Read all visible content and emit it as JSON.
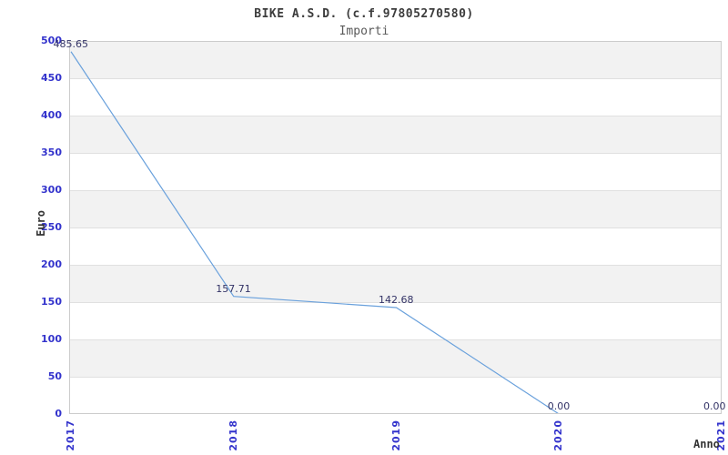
{
  "header": {
    "title": "BIKE A.S.D. (c.f.97805270580)",
    "subtitle": "Importi"
  },
  "chart_data": {
    "type": "line",
    "title": "BIKE A.S.D. (c.f.97805270580)",
    "subtitle": "Importi",
    "xlabel": "Anno",
    "ylabel": "Euro",
    "categories": [
      "2017",
      "2018",
      "2019",
      "2020",
      "2021"
    ],
    "series": [
      {
        "name": "Importi",
        "values": [
          485.65,
          157.71,
          142.68,
          0.0,
          0.0
        ]
      }
    ],
    "point_labels": [
      "485.65",
      "157.71",
      "142.68",
      "0.00",
      "0.00"
    ],
    "ylim": [
      0,
      500
    ],
    "ytick_step": 50,
    "grid": true,
    "bands_alternating": true,
    "legend": "none",
    "colors": {
      "line": "#6aa1dc",
      "tick_label": "#3333cc",
      "point_label": "#333366",
      "band": "#f2f2f2",
      "gridline": "#e0e0e0",
      "border": "#cccccc",
      "title": "#3c3c3c",
      "subtitle": "#5a5a5a",
      "axis_label": "#333333"
    }
  }
}
